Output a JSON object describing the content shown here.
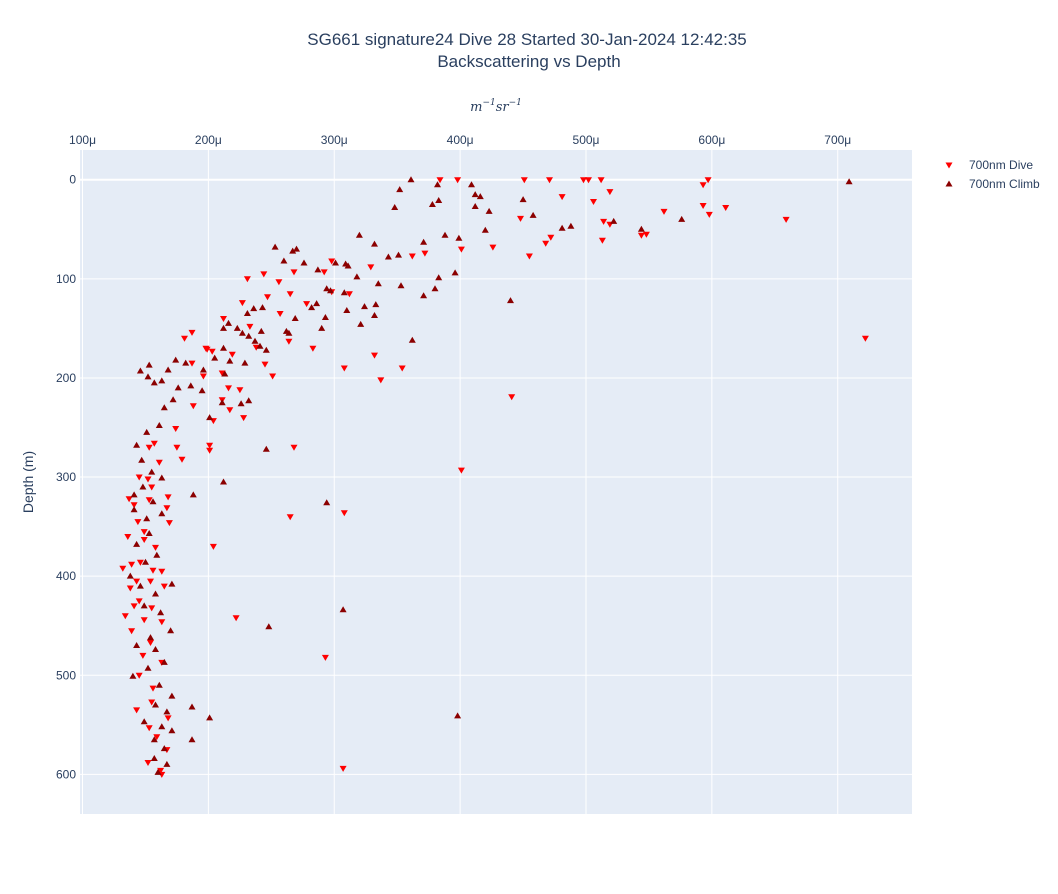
{
  "chart_data": {
    "type": "scatter",
    "title_line1": "SG661 signature24 Dive 28 Started 30-Jan-2024 12:42:35",
    "title_line2": "Backscattering vs Depth",
    "xlabel": "m^{-1} sr^{-1}",
    "xlabel_main": "m",
    "xlabel_exp1": "−1",
    "xlabel_mid": "sr",
    "xlabel_exp2": "−1",
    "ylabel": "Depth (m)",
    "x_axis_side": "top",
    "y_reversed": true,
    "xlim": [
      9.8e-05,
      0.000759
    ],
    "ylim": [
      640,
      -30
    ],
    "x_ticks": [
      {
        "value": 0.0001,
        "label": "100μ"
      },
      {
        "value": 0.0002,
        "label": "200μ"
      },
      {
        "value": 0.0003,
        "label": "300μ"
      },
      {
        "value": 0.0004,
        "label": "400μ"
      },
      {
        "value": 0.0005,
        "label": "500μ"
      },
      {
        "value": 0.0006,
        "label": "600μ"
      },
      {
        "value": 0.0007,
        "label": "700μ"
      }
    ],
    "y_ticks": [
      {
        "value": 0,
        "label": "0"
      },
      {
        "value": 100,
        "label": "100"
      },
      {
        "value": 200,
        "label": "200"
      },
      {
        "value": 300,
        "label": "300"
      },
      {
        "value": 400,
        "label": "400"
      },
      {
        "value": 500,
        "label": "500"
      },
      {
        "value": 600,
        "label": "600"
      }
    ],
    "grid": true,
    "legend_position": "top-right",
    "colors": {
      "plot_bg": "#e5ecf6",
      "grid": "#ffffff",
      "text": "#2a3f5f"
    },
    "series": [
      {
        "name": "700nm Dive",
        "marker": "triangle-down",
        "color": "#ff0000",
        "points": [
          [
            0.000384,
            0
          ],
          [
            0.000398,
            0
          ],
          [
            0.000451,
            0
          ],
          [
            0.000471,
            0
          ],
          [
            0.000498,
            0
          ],
          [
            0.000502,
            0
          ],
          [
            0.000512,
            0
          ],
          [
            0.000593,
            5
          ],
          [
            0.000597,
            0
          ],
          [
            0.000519,
            12
          ],
          [
            0.000481,
            17
          ],
          [
            0.000506,
            22
          ],
          [
            0.000593,
            26
          ],
          [
            0.000611,
            28
          ],
          [
            0.000562,
            32
          ],
          [
            0.000598,
            35
          ],
          [
            0.000448,
            39
          ],
          [
            0.000514,
            42
          ],
          [
            0.000659,
            40
          ],
          [
            0.000519,
            45
          ],
          [
            0.000548,
            55
          ],
          [
            0.000544,
            56
          ],
          [
            0.000513,
            61
          ],
          [
            0.000472,
            58
          ],
          [
            0.000468,
            64
          ],
          [
            0.000455,
            77
          ],
          [
            0.000401,
            70
          ],
          [
            0.000426,
            68
          ],
          [
            0.000362,
            77
          ],
          [
            0.000372,
            74
          ],
          [
            0.000329,
            88
          ],
          [
            0.000298,
            82
          ],
          [
            0.000292,
            93
          ],
          [
            0.000268,
            93
          ],
          [
            0.000244,
            95
          ],
          [
            0.000231,
            100
          ],
          [
            0.000256,
            103
          ],
          [
            0.000265,
            115
          ],
          [
            0.000247,
            118
          ],
          [
            0.000278,
            125
          ],
          [
            0.000298,
            113
          ],
          [
            0.000312,
            115
          ],
          [
            0.000257,
            135
          ],
          [
            0.000227,
            124
          ],
          [
            0.000212,
            140
          ],
          [
            0.000233,
            148
          ],
          [
            0.000264,
            163
          ],
          [
            0.000283,
            170
          ],
          [
            0.000187,
            154
          ],
          [
            0.000181,
            160
          ],
          [
            0.000198,
            170
          ],
          [
            0.000203,
            173
          ],
          [
            0.000187,
            185
          ],
          [
            0.000245,
            186
          ],
          [
            0.000251,
            198
          ],
          [
            0.000332,
            177
          ],
          [
            0.000354,
            190
          ],
          [
            0.000337,
            202
          ],
          [
            0.000308,
            190
          ],
          [
            0.000196,
            198
          ],
          [
            0.000211,
            195
          ],
          [
            0.000216,
            210
          ],
          [
            0.000225,
            212
          ],
          [
            0.000211,
            222
          ],
          [
            0.000217,
            232
          ],
          [
            0.000228,
            240
          ],
          [
            0.000204,
            243
          ],
          [
            0.000188,
            228
          ],
          [
            0.000201,
            268
          ],
          [
            0.000201,
            273
          ],
          [
            0.000268,
            270
          ],
          [
            0.000401,
            293
          ],
          [
            0.000441,
            219
          ],
          [
            0.000174,
            251
          ],
          [
            0.000175,
            270
          ],
          [
            0.000179,
            282
          ],
          [
            0.000157,
            266
          ],
          [
            0.000153,
            270
          ],
          [
            0.000161,
            285
          ],
          [
            0.000145,
            300
          ],
          [
            0.000137,
            322
          ],
          [
            0.000141,
            328
          ],
          [
            0.000153,
            323
          ],
          [
            0.000167,
            331
          ],
          [
            0.000169,
            346
          ],
          [
            0.000149,
            355
          ],
          [
            0.000136,
            360
          ],
          [
            0.000149,
            363
          ],
          [
            0.000158,
            371
          ],
          [
            0.000139,
            388
          ],
          [
            0.000146,
            386
          ],
          [
            0.000156,
            394
          ],
          [
            0.000132,
            392
          ],
          [
            0.000143,
            405
          ],
          [
            0.000154,
            405
          ],
          [
            0.000165,
            410
          ],
          [
            0.000138,
            412
          ],
          [
            0.000145,
            425
          ],
          [
            0.000155,
            432
          ],
          [
            0.000134,
            440
          ],
          [
            0.000149,
            444
          ],
          [
            0.000163,
            446
          ],
          [
            0.000139,
            455
          ],
          [
            0.000154,
            467
          ],
          [
            0.000148,
            480
          ],
          [
            0.000163,
            487
          ],
          [
            0.000145,
            500
          ],
          [
            0.000156,
            513
          ],
          [
            0.000143,
            535
          ],
          [
            0.000155,
            527
          ],
          [
            0.000168,
            543
          ],
          [
            0.000153,
            553
          ],
          [
            0.000159,
            562
          ],
          [
            0.000167,
            575
          ],
          [
            0.000152,
            588
          ],
          [
            0.000162,
            596
          ],
          [
            0.000204,
            370
          ],
          [
            0.000265,
            340
          ],
          [
            0.000308,
            336
          ],
          [
            0.000222,
            442
          ],
          [
            0.000293,
            482
          ],
          [
            0.000307,
            594
          ],
          [
            0.000722,
            160
          ],
          [
            0.000199,
            171
          ],
          [
            0.000219,
            176
          ],
          [
            0.000238,
            169
          ],
          [
            0.000155,
            310
          ],
          [
            0.000168,
            320
          ],
          [
            0.000163,
            395
          ],
          [
            0.000144,
            345
          ],
          [
            0.000152,
            302
          ],
          [
            0.000141,
            430
          ],
          [
            0.000163,
            600
          ]
        ]
      },
      {
        "name": "700nm Climb",
        "marker": "triangle-up",
        "color": "#8b0000",
        "points": [
          [
            0.000361,
            0
          ],
          [
            0.000382,
            5
          ],
          [
            0.000409,
            5
          ],
          [
            0.000412,
            15
          ],
          [
            0.000416,
            17
          ],
          [
            0.000352,
            10
          ],
          [
            0.000383,
            21
          ],
          [
            0.000378,
            25
          ],
          [
            0.000412,
            27
          ],
          [
            0.000423,
            32
          ],
          [
            0.000348,
            28
          ],
          [
            0.00045,
            20
          ],
          [
            0.000458,
            36
          ],
          [
            0.000481,
            49
          ],
          [
            0.000488,
            47
          ],
          [
            0.000544,
            50
          ],
          [
            0.000522,
            42
          ],
          [
            0.000576,
            40
          ],
          [
            0.000709,
            2
          ],
          [
            0.00042,
            51
          ],
          [
            0.000399,
            59
          ],
          [
            0.000371,
            63
          ],
          [
            0.000388,
            56
          ],
          [
            0.000332,
            65
          ],
          [
            0.000343,
            78
          ],
          [
            0.000351,
            76
          ],
          [
            0.000276,
            84
          ],
          [
            0.000287,
            91
          ],
          [
            0.000301,
            84
          ],
          [
            0.000309,
            85
          ],
          [
            0.000311,
            87
          ],
          [
            0.000253,
            68
          ],
          [
            0.00026,
            82
          ],
          [
            0.000267,
            72
          ],
          [
            0.00027,
            70
          ],
          [
            0.000396,
            94
          ],
          [
            0.000383,
            99
          ],
          [
            0.00038,
            110
          ],
          [
            0.000371,
            117
          ],
          [
            0.000353,
            107
          ],
          [
            0.000335,
            105
          ],
          [
            0.000318,
            98
          ],
          [
            0.000294,
            110
          ],
          [
            0.000297,
            112
          ],
          [
            0.000308,
            114
          ],
          [
            0.000333,
            126
          ],
          [
            0.000324,
            128
          ],
          [
            0.000321,
            146
          ],
          [
            0.00031,
            132
          ],
          [
            0.000332,
            137
          ],
          [
            0.000286,
            125
          ],
          [
            0.000282,
            129
          ],
          [
            0.00029,
            150
          ],
          [
            0.000293,
            139
          ],
          [
            0.000269,
            140
          ],
          [
            0.000262,
            153
          ],
          [
            0.000264,
            155
          ],
          [
            0.000243,
            129
          ],
          [
            0.000236,
            130
          ],
          [
            0.000231,
            135
          ],
          [
            0.000216,
            145
          ],
          [
            0.000223,
            150
          ],
          [
            0.000227,
            155
          ],
          [
            0.000232,
            158
          ],
          [
            0.000237,
            163
          ],
          [
            0.000241,
            168
          ],
          [
            0.000246,
            172
          ],
          [
            0.000212,
            170
          ],
          [
            0.000205,
            180
          ],
          [
            0.000217,
            183
          ],
          [
            0.000229,
            185
          ],
          [
            0.000213,
            196
          ],
          [
            0.000196,
            192
          ],
          [
            0.000182,
            185
          ],
          [
            0.000174,
            182
          ],
          [
            0.000168,
            192
          ],
          [
            0.000157,
            205
          ],
          [
            0.000153,
            187
          ],
          [
            0.000146,
            193
          ],
          [
            0.000152,
            199
          ],
          [
            0.000163,
            203
          ],
          [
            0.000176,
            210
          ],
          [
            0.000186,
            208
          ],
          [
            0.000195,
            213
          ],
          [
            0.000211,
            225
          ],
          [
            0.000201,
            240
          ],
          [
            0.000226,
            226
          ],
          [
            0.000232,
            223
          ],
          [
            0.000246,
            272
          ],
          [
            0.000212,
            305
          ],
          [
            0.000188,
            318
          ],
          [
            0.000294,
            326
          ],
          [
            0.000307,
            434
          ],
          [
            0.000248,
            451
          ],
          [
            0.000398,
            541
          ],
          [
            0.000362,
            162
          ],
          [
            0.00044,
            122
          ],
          [
            0.000172,
            222
          ],
          [
            0.000165,
            230
          ],
          [
            0.000161,
            248
          ],
          [
            0.000151,
            255
          ],
          [
            0.000143,
            268
          ],
          [
            0.000147,
            283
          ],
          [
            0.000155,
            295
          ],
          [
            0.000163,
            301
          ],
          [
            0.000148,
            310
          ],
          [
            0.000141,
            318
          ],
          [
            0.000156,
            325
          ],
          [
            0.000163,
            337
          ],
          [
            0.000141,
            333
          ],
          [
            0.000151,
            342
          ],
          [
            0.000153,
            357
          ],
          [
            0.000143,
            368
          ],
          [
            0.000159,
            379
          ],
          [
            0.00015,
            386
          ],
          [
            0.000138,
            400
          ],
          [
            0.000146,
            410
          ],
          [
            0.000158,
            418
          ],
          [
            0.000171,
            408
          ],
          [
            0.000149,
            430
          ],
          [
            0.000162,
            437
          ],
          [
            0.00017,
            455
          ],
          [
            0.000154,
            462
          ],
          [
            0.000143,
            470
          ],
          [
            0.000158,
            474
          ],
          [
            0.000165,
            487
          ],
          [
            0.000152,
            493
          ],
          [
            0.00014,
            501
          ],
          [
            0.000161,
            510
          ],
          [
            0.000171,
            521
          ],
          [
            0.000158,
            530
          ],
          [
            0.000167,
            537
          ],
          [
            0.000149,
            547
          ],
          [
            0.000163,
            552
          ],
          [
            0.000171,
            556
          ],
          [
            0.000157,
            565
          ],
          [
            0.000165,
            574
          ],
          [
            0.000157,
            584
          ],
          [
            0.000167,
            590
          ],
          [
            0.00016,
            598
          ],
          [
            0.000201,
            543
          ],
          [
            0.000187,
            565
          ],
          [
            0.000187,
            532
          ],
          [
            0.000212,
            150
          ],
          [
            0.000242,
            153
          ],
          [
            0.00032,
            56
          ]
        ]
      }
    ]
  }
}
